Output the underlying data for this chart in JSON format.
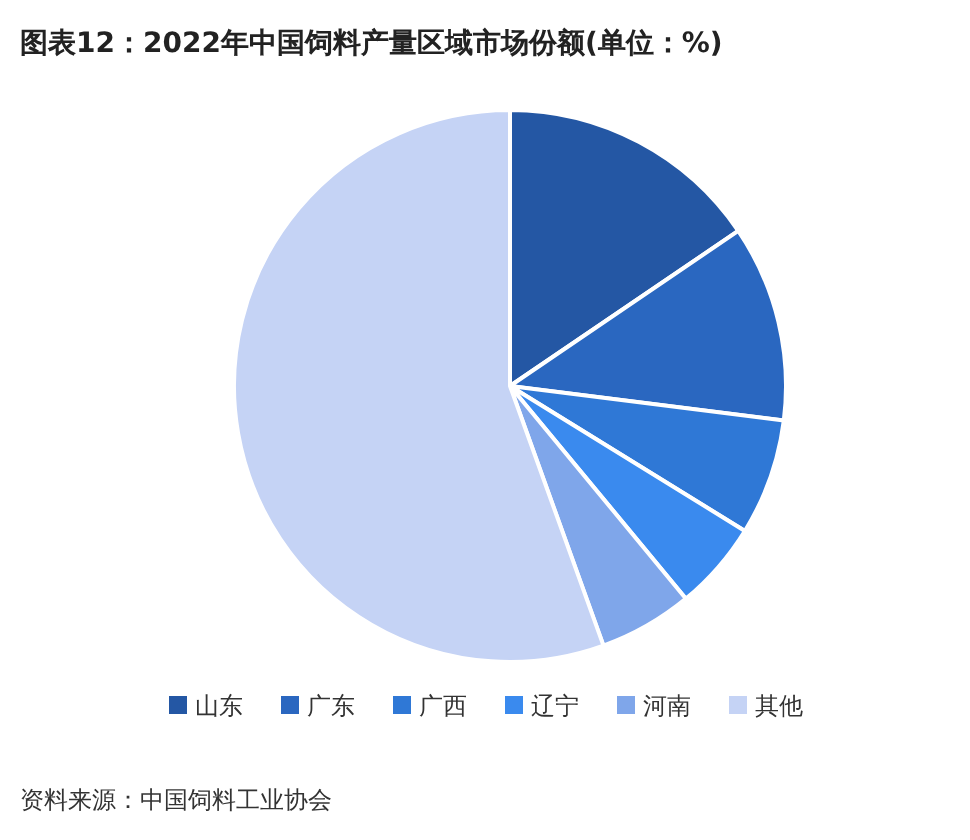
{
  "chart_data": {
    "type": "pie",
    "title": "图表12：2022年中国饲料产量区域市场份额(单位：%)",
    "categories": [
      "山东",
      "广东",
      "广西",
      "辽宁",
      "河南",
      "其他"
    ],
    "values": [
      15.5,
      11.5,
      6.8,
      5.2,
      5.5,
      55.5
    ],
    "colors": [
      "#2457a4",
      "#2a67c0",
      "#2f78d6",
      "#3a8aee",
      "#7fa6ea",
      "#c5d3f5"
    ],
    "legend": "bottom",
    "annotations": [
      "资料来源：中国饲料工业协会"
    ]
  }
}
